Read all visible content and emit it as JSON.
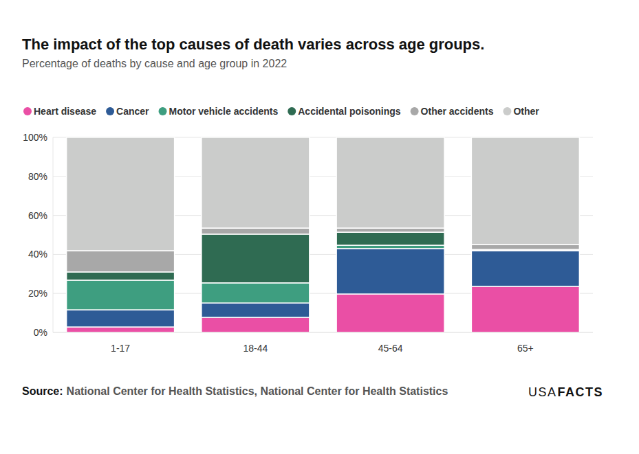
{
  "chart_data": {
    "type": "bar",
    "stacked": true,
    "grid": true,
    "legend": "top",
    "title": "The impact of the top causes of death varies across age groups.",
    "subtitle": "Percentage of deaths by cause and age group in 2022",
    "source_label": "Source:",
    "source": "National Center for Health Statistics, National Center for Health Statistics",
    "logo": [
      "USA",
      "FACTS"
    ],
    "categories": [
      "1-17",
      "18-44",
      "45-64",
      "65+"
    ],
    "ylim": [
      0,
      100
    ],
    "yticks": [
      {
        "value": 0,
        "label": "0%"
      },
      {
        "value": 20,
        "label": "20%"
      },
      {
        "value": 40,
        "label": "40%"
      },
      {
        "value": 60,
        "label": "60%"
      },
      {
        "value": 80,
        "label": "80%"
      },
      {
        "value": 100,
        "label": "100%"
      }
    ],
    "series": [
      {
        "name": "Heart disease",
        "color": "#ea4fa5",
        "values": [
          2.8,
          7.7,
          19.7,
          23.6
        ]
      },
      {
        "name": "Cancer",
        "color": "#2e5b96",
        "values": [
          8.8,
          7.4,
          23.3,
          18.3
        ]
      },
      {
        "name": "Motor vehicle accidents",
        "color": "#3e9e80",
        "values": [
          15.2,
          10.3,
          1.7,
          0.4
        ]
      },
      {
        "name": "Accidental poisonings",
        "color": "#2f6b52",
        "values": [
          4.2,
          25.0,
          6.7,
          0.2
        ]
      },
      {
        "name": "Other accidents",
        "color": "#a8a8a8",
        "values": [
          10.9,
          3.1,
          2.1,
          2.6
        ]
      },
      {
        "name": "Other",
        "color": "#cbcccb",
        "values": [
          58.1,
          46.5,
          46.5,
          54.9
        ]
      }
    ]
  }
}
